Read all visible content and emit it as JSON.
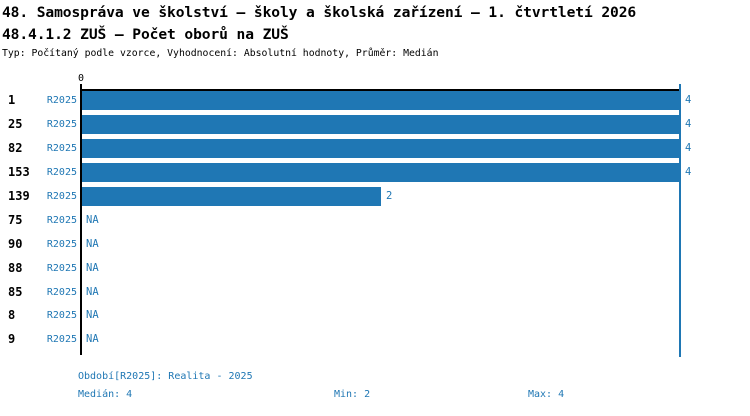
{
  "title": {
    "line1": "48. Samospráva ve školství – školy a školská zařízení – 1. čtvrtletí 2026",
    "line2": "48.4.1.2 ZUŠ – Počet oborů na ZUŠ",
    "subtitle": "Typ: Počítaný podle vzorce, Vyhodnocení: Absolutní hodnoty, Průměr: Medián"
  },
  "chart_data": {
    "type": "bar",
    "orientation": "horizontal",
    "title": "48.4.1.2 ZUŠ – Počet oborů na ZUŠ",
    "categories": [
      "1",
      "25",
      "82",
      "153",
      "139",
      "75",
      "90",
      "88",
      "85",
      "8",
      "9"
    ],
    "series": [
      {
        "name": "R2025",
        "values": [
          4,
          4,
          4,
          4,
          2,
          null,
          null,
          null,
          null,
          null,
          null
        ]
      }
    ],
    "na_label": "NA",
    "xlabel": "",
    "ylabel": "",
    "x_axis": {
      "min": 0,
      "max": 4,
      "tick_labels": [
        "0"
      ],
      "position": "top"
    },
    "grid": false,
    "median_line_value": 4,
    "legend_position": "bottom",
    "stats": {
      "median": 4,
      "min": 2,
      "max": 4
    }
  },
  "legend": {
    "period": "Období[R2025]: Realita - 2025",
    "median": "Medián: 4",
    "min": "Min: 2",
    "max": "Max: 4"
  },
  "colors": {
    "bar": "#1f77b4",
    "blue_text": "#1f77b4",
    "axis": "#000000",
    "background": "#ffffff"
  }
}
